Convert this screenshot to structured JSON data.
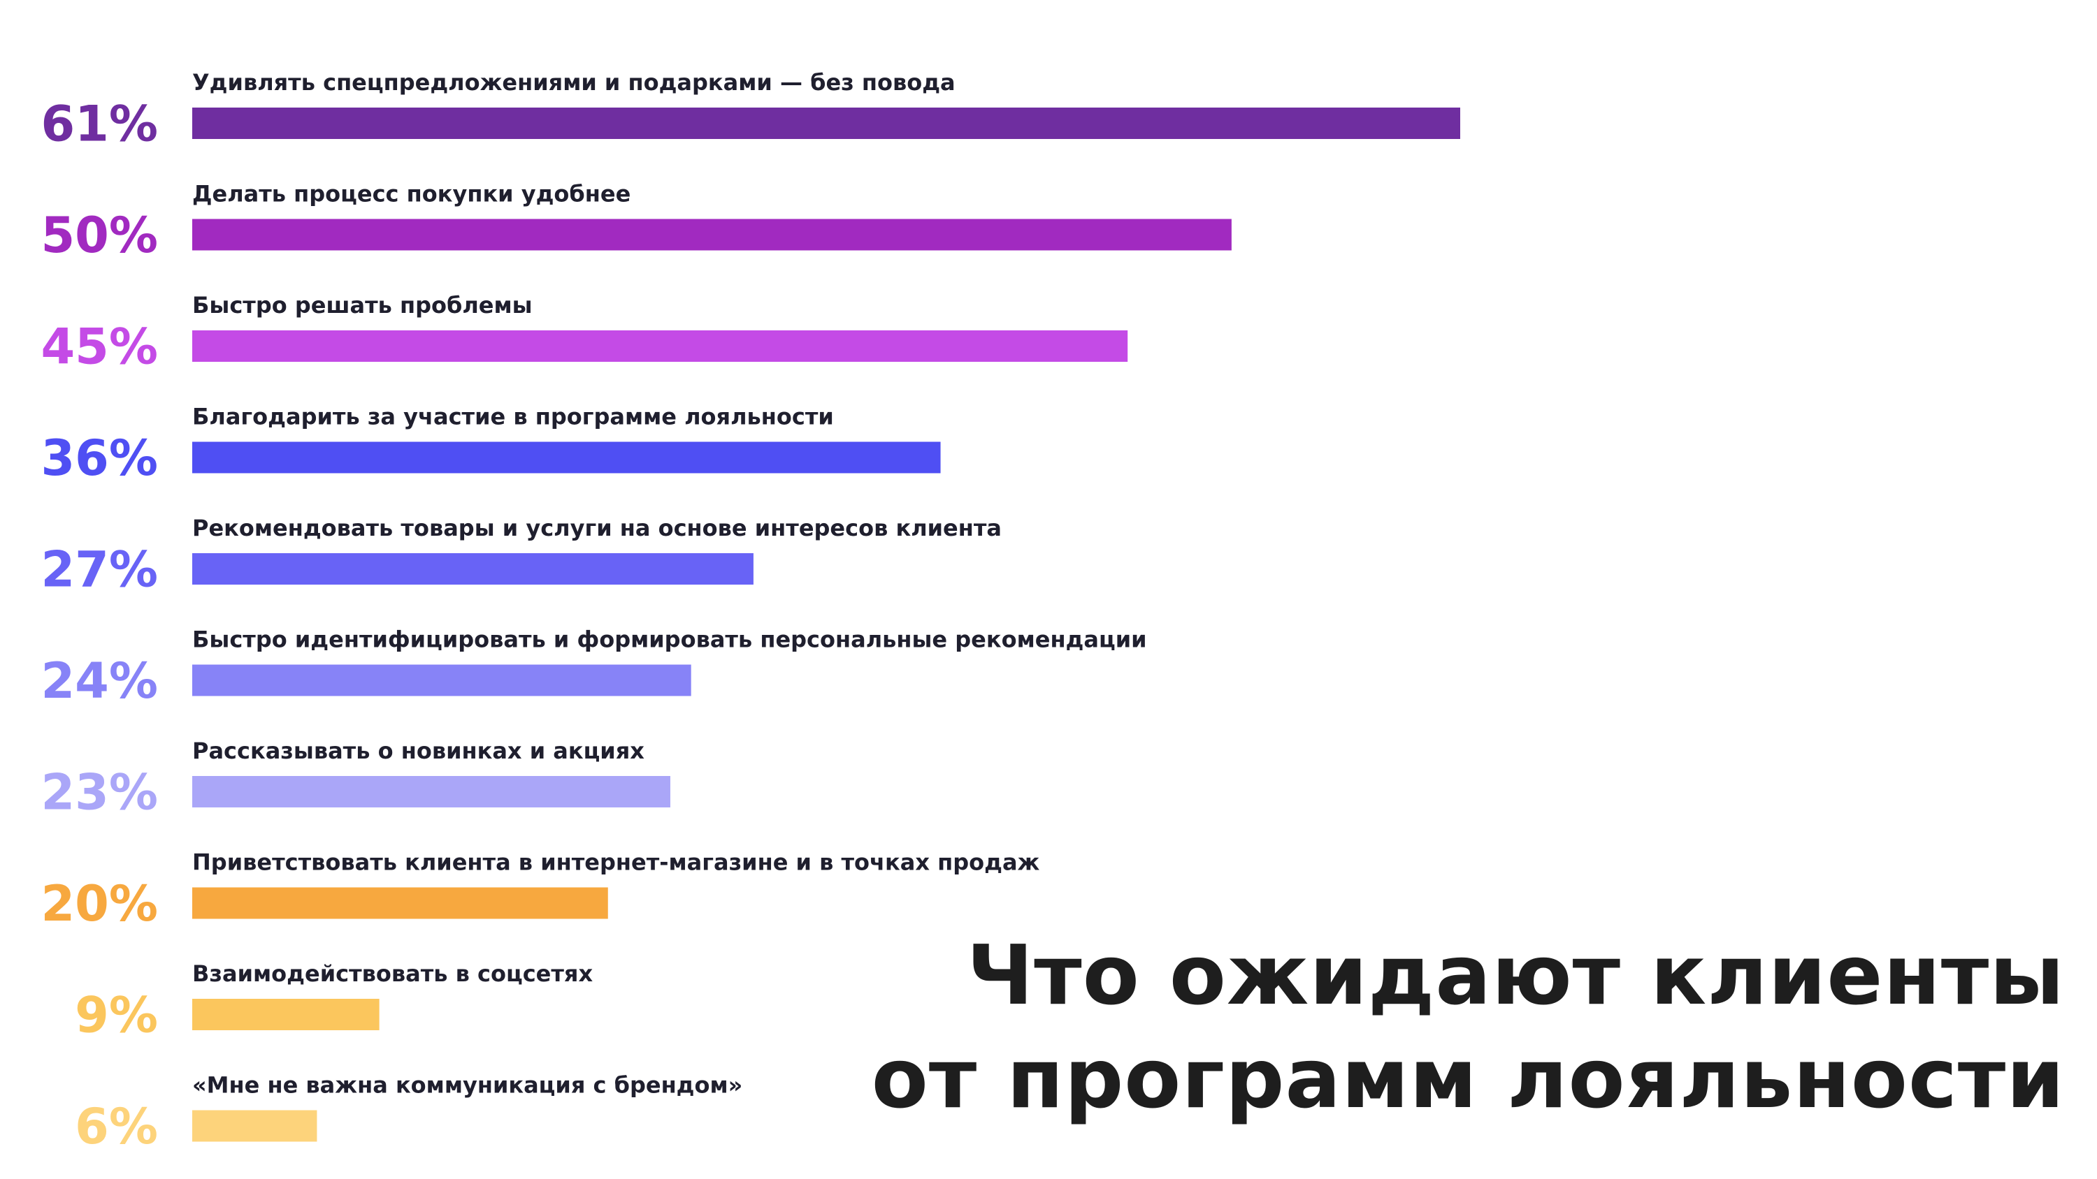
{
  "title": {
    "line1": "Что ожидают клиенты",
    "line2": "от программ лояльности"
  },
  "chart_data": {
    "type": "bar",
    "orientation": "horizontal",
    "title": "Что ожидают клиенты от программ лояльности",
    "xlim": [
      0,
      61
    ],
    "grid": false,
    "categories": [
      "Удивлять спецпредложениями и подарками — без повода",
      "Делать процесс покупки удобнее",
      "Быстро решать проблемы",
      "Благодарить за участие в программе лояльности",
      "Рекомендовать товары и услуги на основе интересов клиента",
      "Быстро идентифицировать и формировать персональные рекомендации",
      "Рассказывать о новинках и акциях",
      "Приветствовать клиента в интернет-магазине и в точках продаж",
      "Взаимодействовать в соцсетях",
      "«Мне не важна коммуникация с брендом»"
    ],
    "values": [
      61,
      50,
      45,
      36,
      27,
      24,
      23,
      20,
      9,
      6
    ],
    "value_labels": [
      "61%",
      "50%",
      "45%",
      "36%",
      "27%",
      "24%",
      "23%",
      "20%",
      "9%",
      "6%"
    ],
    "colors": [
      "#6f2ea0",
      "#a12ac0",
      "#c44be6",
      "#4f4ff3",
      "#6863f6",
      "#8783f7",
      "#aaa6f8",
      "#f7a83f",
      "#fbc65d",
      "#fdd37b"
    ]
  }
}
